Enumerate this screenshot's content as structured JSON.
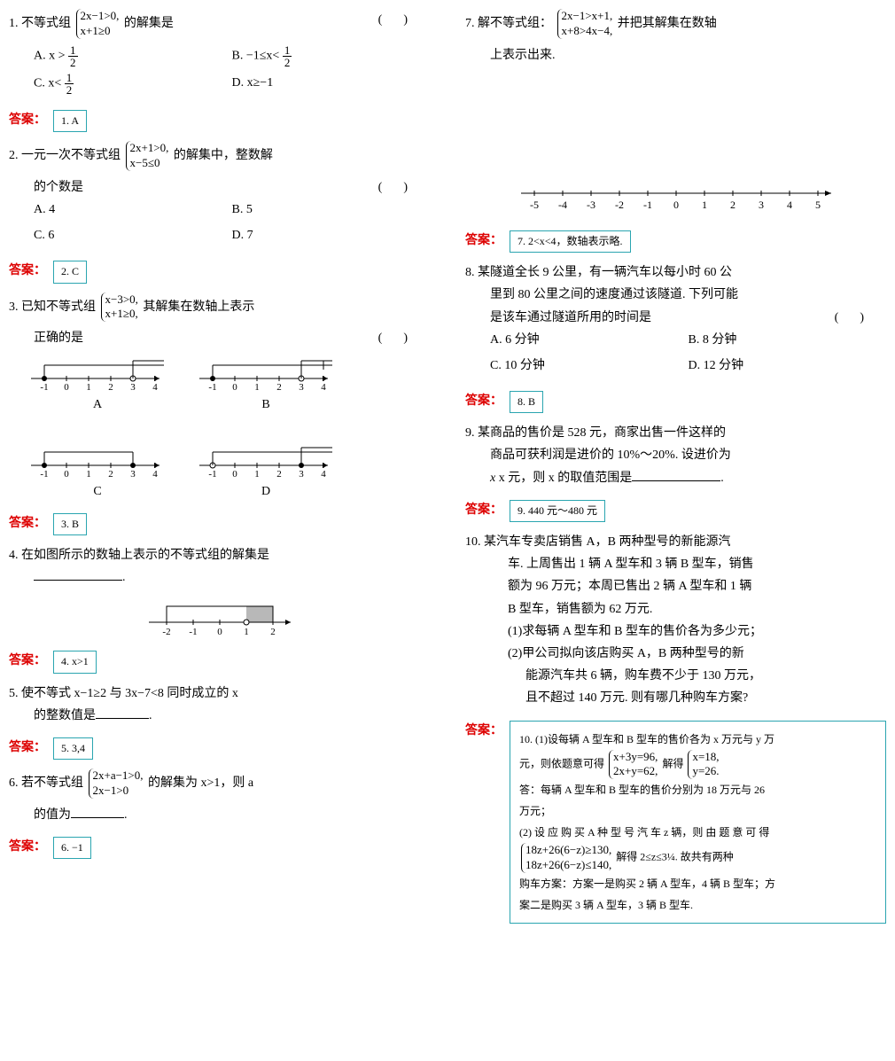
{
  "q1": {
    "num": "1.",
    "pre": "不等式组",
    "sys1": "2x−1>0,",
    "sys2": "x+1≥0",
    "post": "的解集是",
    "optA": "A. x > ",
    "optB": "B. −1≤x< ",
    "optC": "C. x< ",
    "optD": "D. x≥−1",
    "half": "1",
    "two": "2",
    "ans": "1. A"
  },
  "q2": {
    "num": "2.",
    "pre": "一元一次不等式组",
    "sys1": "2x+1>0,",
    "sys2": "x−5≤0",
    "post": "的解集中，整数解",
    "line2": "的个数是",
    "optA": "A. 4",
    "optB": "B. 5",
    "optC": "C. 6",
    "optD": "D. 7",
    "ans": "2. C"
  },
  "q3": {
    "num": "3.",
    "pre": "已知不等式组",
    "sys1": "x−3>0,",
    "sys2": "x+1≥0,",
    "post": "其解集在数轴上表示",
    "line2": "正确的是",
    "labA": "A",
    "labB": "B",
    "labC": "C",
    "labD": "D",
    "ans": "3. B"
  },
  "q4": {
    "text": "4. 在如图所示的数轴上表示的不等式组的解集是",
    "blank": "________.",
    "ans": "4. x>1"
  },
  "q5": {
    "text": "5. 使不等式 x−1≥2 与 3x−7<8 同时成立的 x",
    "line2": "的整数值是",
    "ans": "5. 3,4"
  },
  "q6": {
    "num": "6.",
    "pre": "若不等式组",
    "sys1": "2x+a−1>0,",
    "sys2": "2x−1>0",
    "post": "的解集为 x>1，则 a",
    "line2": "的值为",
    "ans": "6. −1"
  },
  "q7": {
    "num": "7.",
    "pre": "解不等式组：",
    "sys1": "2x−1>x+1,",
    "sys2": "x+8>4x−4,",
    "post": "并把其解集在数轴",
    "line2": "上表示出来.",
    "ticks": [
      "-5",
      "-4",
      "-3",
      "-2",
      "-1",
      "0",
      "1",
      "2",
      "3",
      "4",
      "5"
    ],
    "ans": "7. 2<x<4，数轴表示略."
  },
  "q8": {
    "l1": "8. 某隧道全长 9 公里，有一辆汽车以每小时 60 公",
    "l2": "里到 80 公里之间的速度通过该隧道. 下列可能",
    "l3": "是该车通过隧道所用的时间是",
    "optA": "A. 6 分钟",
    "optB": "B. 8 分钟",
    "optC": "C. 10 分钟",
    "optD": "D. 12 分钟",
    "ans": "8. B"
  },
  "q9": {
    "l1": "9. 某商品的售价是 528 元，商家出售一件这样的",
    "l2": "商品可获利润是进价的 10%～20%. 设进价为",
    "l3": "x 元，则 x 的取值范围是",
    "ans": "9. 440 元～480 元"
  },
  "q10": {
    "l1": "10. 某汽车专卖店销售 A，B 两种型号的新能源汽",
    "l2": "车. 上周售出 1 辆 A 型车和 3 辆 B 型车，销售",
    "l3": "额为 96 万元；本周已售出 2 辆 A 型车和 1 辆",
    "l4": "B 型车，销售额为 62 万元.",
    "l5": "(1)求每辆 A 型车和 B 型车的售价各为多少元；",
    "l6": "(2)甲公司拟向该店购买 A，B 两种型号的新",
    "l7": "能源汽车共 6 辆，购车费不少于 130 万元，",
    "l8": "且不超过 140 万元. 则有哪几种购车方案?",
    "a1": "10. (1)设每辆 A 型车和 B 型车的售价各为 x 万元与 y 万",
    "a2pre": "元，则依题意可得",
    "a2s1": "x+3y=96,",
    "a2s2": "2x+y=62,",
    "a2mid": "解得",
    "a2r1": "x=18,",
    "a2r2": "y=26.",
    "a3": "答：每辆 A 型车和 B 型车的售价分别为 18 万元与 26",
    "a4": "万元；",
    "a5": "(2) 设 应 购 买 A 种 型 号 汽 车 z 辆，则 由 题 意 可 得",
    "a6s1": "18z+26(6−z)≥130,",
    "a6s2": "18z+26(6−z)≤140,",
    "a6post": "解得 2≤z≤3¼. 故共有两种",
    "a7": "购车方案：方案一是购买 2 辆 A 型车，4 辆 B 型车；方",
    "a8": "案二是购买 3 辆 A 型车，3 辆 B 型车."
  },
  "ansLabel": "答案："
}
